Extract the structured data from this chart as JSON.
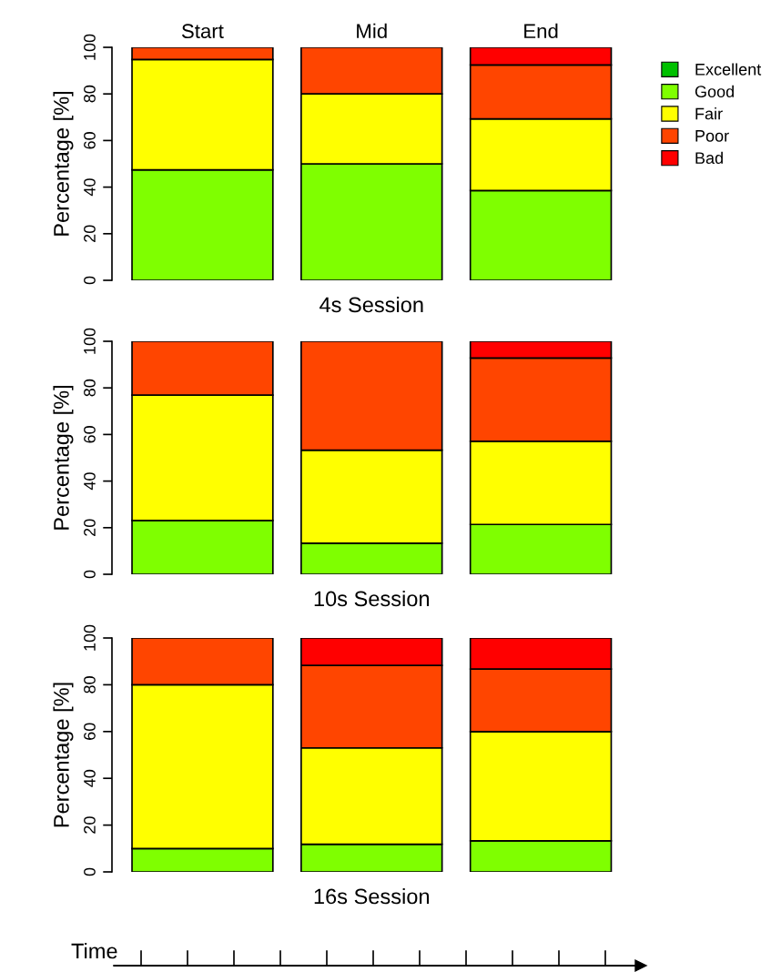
{
  "chart_data": [
    {
      "type": "bar",
      "stacked": true,
      "categories": [
        "Start",
        "Mid",
        "End"
      ],
      "xlabel": "4s Session",
      "ylabel": "Percentage [%]",
      "ylim": [
        0,
        100
      ],
      "yticks": [
        0,
        20,
        40,
        60,
        80,
        100
      ],
      "grid": false,
      "legend": "top right",
      "series": [
        {
          "name": "Excellent",
          "color": "#00c000",
          "values": [
            0,
            0,
            0
          ]
        },
        {
          "name": "Good",
          "color": "#7fff00",
          "values": [
            47.4,
            50,
            38.5
          ]
        },
        {
          "name": "Fair",
          "color": "#ffff00",
          "values": [
            47.4,
            30,
            30.8
          ]
        },
        {
          "name": "Poor",
          "color": "#ff4500",
          "values": [
            5.2,
            20,
            23.1
          ]
        },
        {
          "name": "Bad",
          "color": "#ff0000",
          "values": [
            0,
            0,
            7.6
          ]
        }
      ]
    },
    {
      "type": "bar",
      "stacked": true,
      "categories": [
        null,
        null,
        null
      ],
      "xlabel": "10s Session",
      "ylabel": "Percentage [%]",
      "ylim": [
        0,
        100
      ],
      "yticks": [
        0,
        20,
        40,
        60,
        80,
        100
      ],
      "grid": false,
      "series": [
        {
          "color": "#00c000",
          "values": [
            0,
            0,
            0
          ]
        },
        {
          "color": "#7fff00",
          "values": [
            23.1,
            13.3,
            21.4
          ]
        },
        {
          "color": "#ffff00",
          "values": [
            53.8,
            40,
            35.7
          ]
        },
        {
          "color": "#ff4500",
          "values": [
            23.1,
            46.7,
            35.7
          ]
        },
        {
          "color": "#ff0000",
          "values": [
            0,
            0,
            7.2
          ]
        }
      ]
    },
    {
      "type": "bar",
      "stacked": true,
      "categories": [
        null,
        null,
        null
      ],
      "xlabel": "16s Session",
      "ylabel": "Percentage [%]",
      "ylim": [
        0,
        100
      ],
      "yticks": [
        0,
        20,
        40,
        60,
        80,
        100
      ],
      "grid": false,
      "annotations": [
        "Time"
      ],
      "series": [
        {
          "color": "#00c000",
          "values": [
            0,
            0,
            0
          ]
        },
        {
          "color": "#7fff00",
          "values": [
            10,
            11.8,
            13.3
          ]
        },
        {
          "color": "#ffff00",
          "values": [
            70,
            41.2,
            46.7
          ]
        },
        {
          "color": "#ff4500",
          "values": [
            20,
            35.3,
            26.7
          ]
        },
        {
          "color": "#ff0000",
          "values": [
            0,
            11.7,
            13.3
          ]
        }
      ]
    }
  ]
}
